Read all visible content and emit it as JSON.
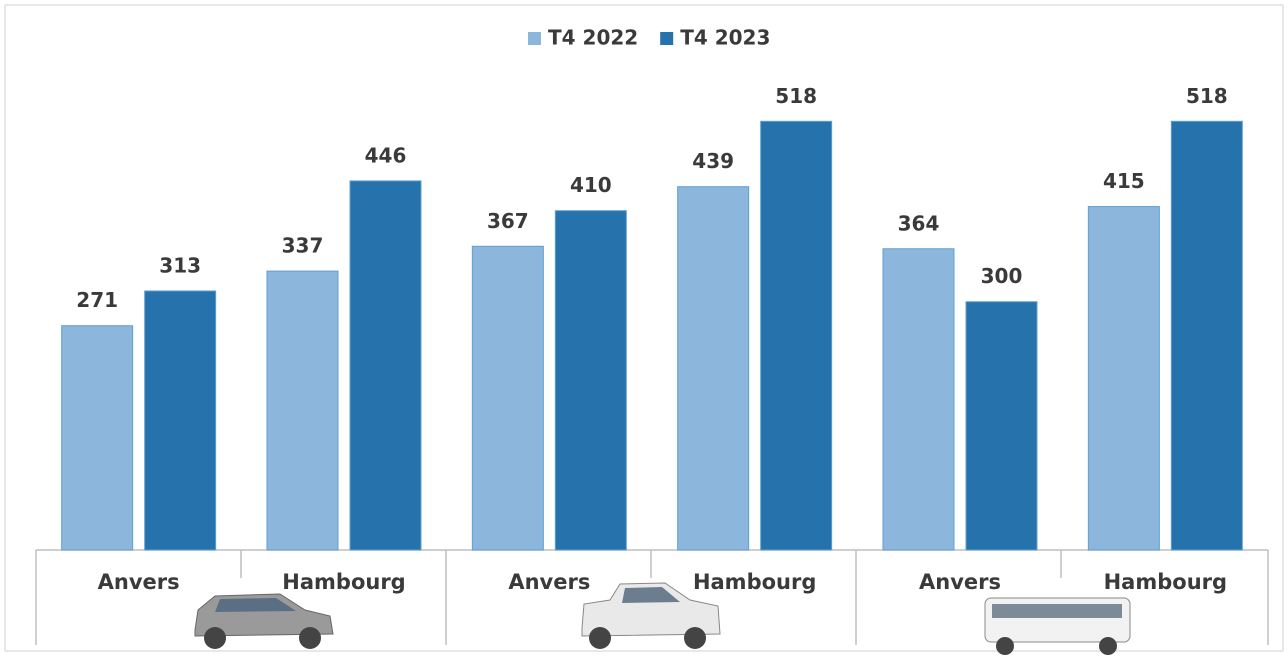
{
  "chart_data": {
    "type": "bar",
    "categories": [
      "Anvers",
      "Hambourg",
      "Anvers",
      "Hambourg",
      "Anvers",
      "Hambourg"
    ],
    "series": [
      {
        "name": "T4 2022",
        "color": "#8db6dc",
        "values": [
          271,
          337,
          367,
          439,
          364,
          415
        ]
      },
      {
        "name": "T4 2023",
        "color": "#2672ad",
        "values": [
          313,
          446,
          410,
          518,
          300,
          518
        ]
      }
    ],
    "ylim": [
      0,
      580
    ]
  }
}
